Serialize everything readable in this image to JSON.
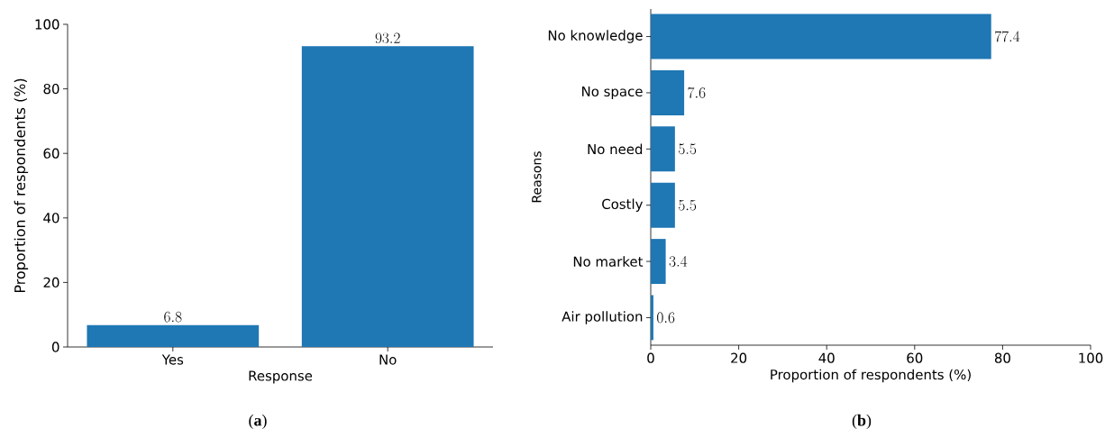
{
  "chart_data": [
    {
      "type": "bar",
      "categories": [
        "Yes",
        "No"
      ],
      "values": [
        6.8,
        93.2
      ],
      "color": "#1f77b4",
      "xlabel": "Response",
      "ylabel": "Proportion of respondents (%)",
      "ylim": [
        0,
        100
      ],
      "yticks": [
        0,
        20,
        40,
        60,
        80,
        100
      ],
      "data_labels": true,
      "annotations": [
        "(**a**)"
      ]
    },
    {
      "type": "bar",
      "orientation": "horizontal",
      "categories": [
        "No knowledge",
        "No space",
        "No need",
        "Costly",
        "No market",
        "Air pollution"
      ],
      "values": [
        77.4,
        7.6,
        5.5,
        5.5,
        3.4,
        0.6
      ],
      "color": "#1f77b4",
      "xlabel": "Proportion of respondents (%)",
      "ylabel": "Reasons",
      "xlim": [
        0,
        100
      ],
      "xticks": [
        0,
        20,
        40,
        60,
        80,
        100
      ],
      "data_labels": true,
      "annotations": [
        "(**b**)"
      ]
    }
  ]
}
